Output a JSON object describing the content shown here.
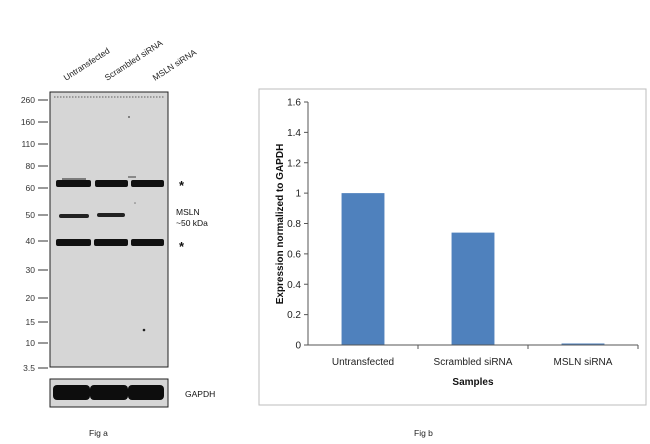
{
  "fig_a": {
    "caption": "Fig a",
    "lane_labels": [
      "Untransfected",
      "Scrambled siRNA",
      "MSLN  siRNA"
    ],
    "marker_labels": [
      "260",
      "160",
      "110",
      "80",
      "60",
      "50",
      "40",
      "30",
      "20",
      "15",
      "10",
      "3.5"
    ],
    "band_annotations": {
      "upper_asterisk": "*",
      "target_name": "MSLN",
      "target_size": "~50 kDa",
      "lower_asterisk": "*"
    },
    "loading_control_label": "GAPDH",
    "colors": {
      "blot_background": "#d6d6d6",
      "band": "#111111",
      "frame": "#222222"
    }
  },
  "fig_b": {
    "caption": "Fig b"
  },
  "chart_data": {
    "type": "bar",
    "categories": [
      "Untransfected",
      "Scrambled siRNA",
      "MSLN siRNA"
    ],
    "values": [
      1.0,
      0.74,
      0.01
    ],
    "xlabel": "Samples",
    "ylabel": "Expression normalized to GAPDH",
    "ylim": [
      0,
      1.6
    ],
    "yticks": [
      "0",
      "0.2",
      "0.4",
      "0.6",
      "0.8",
      "1",
      "1.2",
      "1.4",
      "1.6"
    ],
    "grid": false,
    "bar_color": "#4f81bd"
  }
}
